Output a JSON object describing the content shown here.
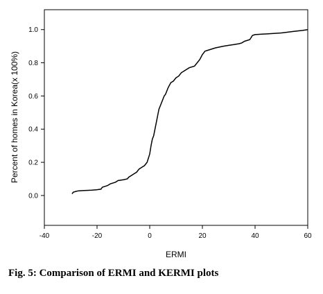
{
  "caption": "Fig. 5: Comparison of ERMI and KERMI plots",
  "chart_data": {
    "type": "line",
    "title": "",
    "xlabel": "ERMI",
    "ylabel": "Percent of homes in Korea(x 100%)",
    "xlim": [
      -40,
      60
    ],
    "ylim": [
      -0.18,
      1.12
    ],
    "xticks": [
      -40,
      -20,
      0,
      20,
      40,
      60
    ],
    "xtick_labels": [
      "-40",
      "-20",
      "0",
      "20",
      "40",
      "60"
    ],
    "yticks": [
      0.0,
      0.2,
      0.4,
      0.6,
      0.8,
      1.0
    ],
    "ytick_labels": [
      "0.0",
      "0.2",
      "0.4",
      "0.6",
      "0.8",
      "1.0"
    ],
    "grid": false,
    "legend": "none",
    "line_color": "#000000",
    "series": [
      {
        "x": [
          -29.5,
          -29,
          -28,
          -27,
          -25,
          -22,
          -20,
          -18.5,
          -18,
          -17,
          -16,
          -15,
          -13,
          -12,
          -10,
          -8.5,
          -8,
          -6,
          -5,
          -4,
          -3,
          -2,
          -1,
          0,
          0.5,
          1,
          1.5,
          2,
          2.5,
          3,
          3.5,
          4,
          4.5,
          5,
          5.5,
          6,
          6.5,
          7,
          8,
          9,
          10,
          11,
          12,
          13,
          15,
          17,
          18,
          19,
          20,
          21,
          23,
          25,
          28,
          30,
          32,
          34,
          35,
          36,
          38,
          39,
          40,
          45,
          50,
          55,
          58,
          60
        ],
        "y": [
          0.01,
          0.02,
          0.025,
          0.028,
          0.03,
          0.032,
          0.035,
          0.038,
          0.05,
          0.055,
          0.06,
          0.07,
          0.08,
          0.09,
          0.095,
          0.1,
          0.11,
          0.13,
          0.14,
          0.16,
          0.17,
          0.18,
          0.2,
          0.25,
          0.3,
          0.34,
          0.36,
          0.4,
          0.44,
          0.48,
          0.52,
          0.54,
          0.56,
          0.58,
          0.6,
          0.61,
          0.63,
          0.65,
          0.68,
          0.69,
          0.71,
          0.72,
          0.74,
          0.75,
          0.77,
          0.78,
          0.8,
          0.82,
          0.85,
          0.87,
          0.88,
          0.89,
          0.9,
          0.905,
          0.91,
          0.915,
          0.92,
          0.93,
          0.94,
          0.965,
          0.97,
          0.975,
          0.98,
          0.99,
          0.995,
          1.0
        ]
      }
    ]
  }
}
